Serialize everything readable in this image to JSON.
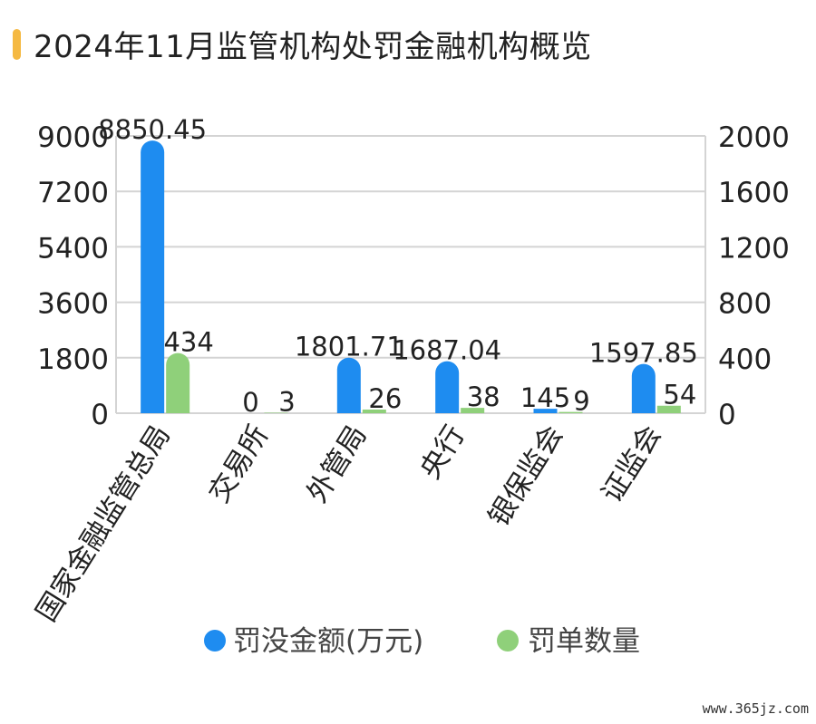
{
  "header": {
    "title": "2024年11月监管机构处罚金融机构概览"
  },
  "watermark": "www.365jz.com",
  "chart_data": {
    "type": "bar",
    "categories": [
      "国家金融监管总局",
      "交易所",
      "外管局",
      "央行",
      "银保监会",
      "证监会"
    ],
    "series": [
      {
        "name": "罚没金额(万元)",
        "axis": "left",
        "color": "#1e8cf0",
        "values": [
          8850.45,
          0,
          1801.71,
          1687.04,
          145,
          1597.85
        ],
        "labels": [
          "8850.45",
          "0",
          "1801.71",
          "1687.04",
          "145",
          "1597.85"
        ]
      },
      {
        "name": "罚单数量",
        "axis": "right",
        "color": "#8fd07a",
        "values": [
          434,
          3,
          26,
          38,
          9,
          54
        ],
        "labels": [
          "434",
          "3",
          "26",
          "38",
          "9",
          "54"
        ]
      }
    ],
    "y_left": {
      "min": 0,
      "max": 9000,
      "ticks": [
        "0",
        "1800",
        "3600",
        "5400",
        "7200",
        "9000"
      ]
    },
    "y_right": {
      "min": 0,
      "max": 2000,
      "ticks": [
        "0",
        "400",
        "800",
        "1200",
        "1600",
        "2000"
      ]
    },
    "grid": true,
    "legend": "bottom"
  }
}
